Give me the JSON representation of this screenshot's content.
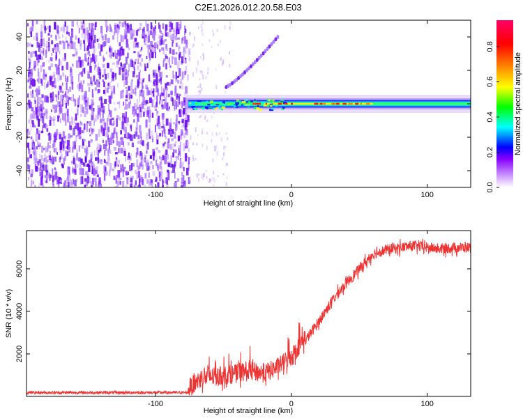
{
  "figure_title": "C2E1.2026.012.20.58.E03",
  "colors": {
    "snr_line": "#ee3333",
    "axes": "#000000",
    "background": "#ffffff"
  },
  "chart_data": [
    {
      "type": "heatmap",
      "title": "C2E1.2026.012.20.58.E03",
      "xlabel": "Height of straight line (km)",
      "ylabel": "Frequency (Hz)",
      "xlim": [
        -195,
        132
      ],
      "ylim": [
        -50,
        50
      ],
      "xticks": [
        -100,
        0,
        100
      ],
      "yticks": [
        -40,
        -20,
        0,
        20,
        40
      ],
      "colorbar": {
        "label": "Normalized spectral amplitude",
        "range": [
          0,
          0.95
        ],
        "ticks": [
          "0.0",
          "0.2",
          "0.4",
          "0.6",
          "0.8"
        ],
        "tick_values": [
          0.0,
          0.2,
          0.4,
          0.6,
          0.8
        ],
        "colors": [
          "#ffffff",
          "#cc99ff",
          "#8800ff",
          "#0000ff",
          "#00ffff",
          "#00ff00",
          "#ffff00",
          "#ff8800",
          "#ff0000",
          "#ff0066"
        ]
      },
      "regions": {
        "noise_end_x": -76,
        "carrier_freq_hz": 0,
        "drift_line_x_range": [
          -48,
          -10
        ],
        "drift_line_freq_range": [
          10,
          40
        ]
      }
    },
    {
      "type": "line",
      "xlabel": "Height of straight line (km)",
      "ylabel": "SNR (10 * v/v)",
      "xlim": [
        -195,
        132
      ],
      "ylim": [
        0,
        7800
      ],
      "xticks": [
        -100,
        0,
        100
      ],
      "yticks": [
        2000,
        4000,
        6000
      ],
      "series": [
        {
          "name": "SNR",
          "color": "#ee3333",
          "profile": {
            "x": [
              -195,
              -76,
              -66,
              -55,
              -40,
              -30,
              -20,
              -10,
              0,
              10,
              20,
              30,
              40,
              50,
              60,
              70,
              80,
              90,
              100,
              110,
              120,
              132
            ],
            "y": [
              180,
              180,
              700,
              750,
              900,
              1000,
              900,
              1200,
              1700,
              2600,
              3500,
              4500,
              5300,
              6000,
              6700,
              6900,
              7000,
              7100,
              7000,
              6950,
              7000,
              7000
            ]
          }
        }
      ]
    }
  ]
}
